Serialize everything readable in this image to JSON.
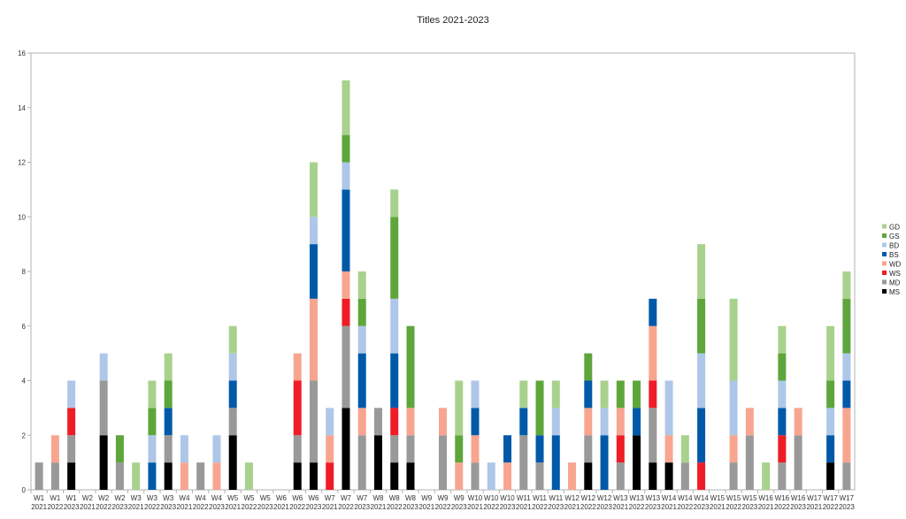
{
  "chart_data": {
    "type": "bar",
    "stacked": true,
    "title": "Titles 2021-2023",
    "xlabel": "",
    "ylabel": "",
    "ylim": [
      0,
      16
    ],
    "yticks": [
      0,
      2,
      4,
      6,
      8,
      10,
      12,
      14,
      16
    ],
    "grid": false,
    "legend_position": "right",
    "categories": [
      [
        "W1",
        "2021"
      ],
      [
        "W1",
        "2022"
      ],
      [
        "W1",
        "2023"
      ],
      [
        "W2",
        "2021"
      ],
      [
        "W2",
        "2022"
      ],
      [
        "W2",
        "2023"
      ],
      [
        "W3",
        "2021"
      ],
      [
        "W3",
        "2022"
      ],
      [
        "W3",
        "2023"
      ],
      [
        "W4",
        "2021"
      ],
      [
        "W4",
        "2022"
      ],
      [
        "W4",
        "2023"
      ],
      [
        "W5",
        "2021"
      ],
      [
        "W5",
        "2022"
      ],
      [
        "W5",
        "2023"
      ],
      [
        "W6",
        "2021"
      ],
      [
        "W6",
        "2022"
      ],
      [
        "W6",
        "2023"
      ],
      [
        "W7",
        "2021"
      ],
      [
        "W7",
        "2022"
      ],
      [
        "W7",
        "2023"
      ],
      [
        "W8",
        "2021"
      ],
      [
        "W8",
        "2022"
      ],
      [
        "W8",
        "2023"
      ],
      [
        "W9",
        "2021"
      ],
      [
        "W9",
        "2022"
      ],
      [
        "W9",
        "2023"
      ],
      [
        "W10",
        "2021"
      ],
      [
        "W10",
        "2022"
      ],
      [
        "W10",
        "2023"
      ],
      [
        "W11",
        "2021"
      ],
      [
        "W11",
        "2022"
      ],
      [
        "W11",
        "2023"
      ],
      [
        "W12",
        "2021"
      ],
      [
        "W12",
        "2022"
      ],
      [
        "W12",
        "2023"
      ],
      [
        "W13",
        "2021"
      ],
      [
        "W13",
        "2022"
      ],
      [
        "W13",
        "2023"
      ],
      [
        "W14",
        "2021"
      ],
      [
        "W14",
        "2022"
      ],
      [
        "W14",
        "2023"
      ],
      [
        "W15",
        "2021"
      ],
      [
        "W15",
        "2022"
      ],
      [
        "W15",
        "2023"
      ],
      [
        "W16",
        "2021"
      ],
      [
        "W16",
        "2022"
      ],
      [
        "W16",
        "2023"
      ],
      [
        "W17",
        "2021"
      ],
      [
        "W17",
        "2022"
      ],
      [
        "W17",
        "2023"
      ]
    ],
    "series": [
      {
        "name": "MS",
        "color": "#000000",
        "values": [
          0,
          0,
          1,
          0,
          2,
          0,
          0,
          0,
          1,
          0,
          0,
          0,
          2,
          0,
          0,
          0,
          1,
          1,
          0,
          3,
          0,
          2,
          1,
          1,
          0,
          0,
          0,
          0,
          0,
          0,
          0,
          0,
          0,
          0,
          1,
          0,
          0,
          2,
          1,
          1,
          0,
          0,
          0,
          0,
          0,
          0,
          0,
          0,
          0,
          1,
          0
        ]
      },
      {
        "name": "MD",
        "color": "#999999",
        "values": [
          1,
          1,
          1,
          0,
          2,
          1,
          0,
          0,
          1,
          0,
          1,
          0,
          1,
          0,
          0,
          0,
          1,
          3,
          0,
          3,
          2,
          1,
          1,
          1,
          0,
          2,
          0,
          1,
          0,
          0,
          2,
          1,
          0,
          0,
          1,
          0,
          1,
          0,
          2,
          0,
          1,
          0,
          0,
          1,
          2,
          0,
          1,
          2,
          0,
          0,
          1
        ]
      },
      {
        "name": "WS",
        "color": "#ee1c25",
        "values": [
          0,
          0,
          1,
          0,
          0,
          0,
          0,
          0,
          0,
          0,
          0,
          0,
          0,
          0,
          0,
          0,
          2,
          0,
          1,
          1,
          0,
          0,
          1,
          0,
          0,
          0,
          0,
          0,
          0,
          0,
          0,
          0,
          0,
          0,
          0,
          0,
          1,
          0,
          1,
          0,
          0,
          1,
          0,
          0,
          0,
          0,
          1,
          0,
          0,
          0,
          0
        ]
      },
      {
        "name": "WD",
        "color": "#f8a590",
        "values": [
          0,
          1,
          0,
          0,
          0,
          0,
          0,
          0,
          0,
          1,
          0,
          1,
          0,
          0,
          0,
          0,
          1,
          3,
          1,
          1,
          1,
          0,
          0,
          1,
          0,
          1,
          1,
          1,
          0,
          1,
          0,
          0,
          0,
          1,
          1,
          0,
          1,
          0,
          2,
          1,
          0,
          0,
          0,
          1,
          1,
          0,
          0,
          1,
          0,
          0,
          2
        ]
      },
      {
        "name": "BS",
        "color": "#0059a8",
        "values": [
          0,
          0,
          0,
          0,
          0,
          0,
          0,
          1,
          1,
          0,
          0,
          0,
          1,
          0,
          0,
          0,
          0,
          2,
          0,
          3,
          2,
          0,
          2,
          0,
          0,
          0,
          0,
          1,
          0,
          1,
          1,
          1,
          2,
          0,
          1,
          2,
          0,
          1,
          1,
          0,
          0,
          2,
          0,
          0,
          0,
          0,
          1,
          0,
          0,
          1,
          1
        ]
      },
      {
        "name": "BD",
        "color": "#aec7e8",
        "values": [
          0,
          0,
          1,
          0,
          1,
          0,
          0,
          1,
          0,
          1,
          0,
          1,
          1,
          0,
          0,
          0,
          0,
          1,
          1,
          1,
          1,
          0,
          2,
          0,
          0,
          0,
          0,
          1,
          1,
          0,
          0,
          0,
          1,
          0,
          0,
          1,
          0,
          0,
          0,
          2,
          0,
          2,
          0,
          2,
          0,
          0,
          1,
          0,
          0,
          1,
          1
        ]
      },
      {
        "name": "GS",
        "color": "#5ea63b",
        "values": [
          0,
          0,
          0,
          0,
          0,
          1,
          0,
          1,
          1,
          0,
          0,
          0,
          0,
          0,
          0,
          0,
          0,
          0,
          0,
          1,
          1,
          0,
          3,
          3,
          0,
          0,
          1,
          0,
          0,
          0,
          0,
          2,
          0,
          0,
          1,
          0,
          1,
          1,
          0,
          0,
          0,
          2,
          0,
          0,
          0,
          0,
          1,
          0,
          0,
          1,
          2
        ]
      },
      {
        "name": "GD",
        "color": "#a9d18e",
        "values": [
          0,
          0,
          0,
          0,
          0,
          0,
          1,
          1,
          1,
          0,
          0,
          0,
          1,
          1,
          0,
          0,
          0,
          2,
          0,
          2,
          1,
          0,
          1,
          0,
          0,
          0,
          2,
          0,
          0,
          0,
          1,
          0,
          1,
          0,
          0,
          1,
          0,
          0,
          0,
          0,
          1,
          2,
          0,
          3,
          0,
          1,
          1,
          0,
          0,
          2,
          1
        ]
      }
    ]
  }
}
